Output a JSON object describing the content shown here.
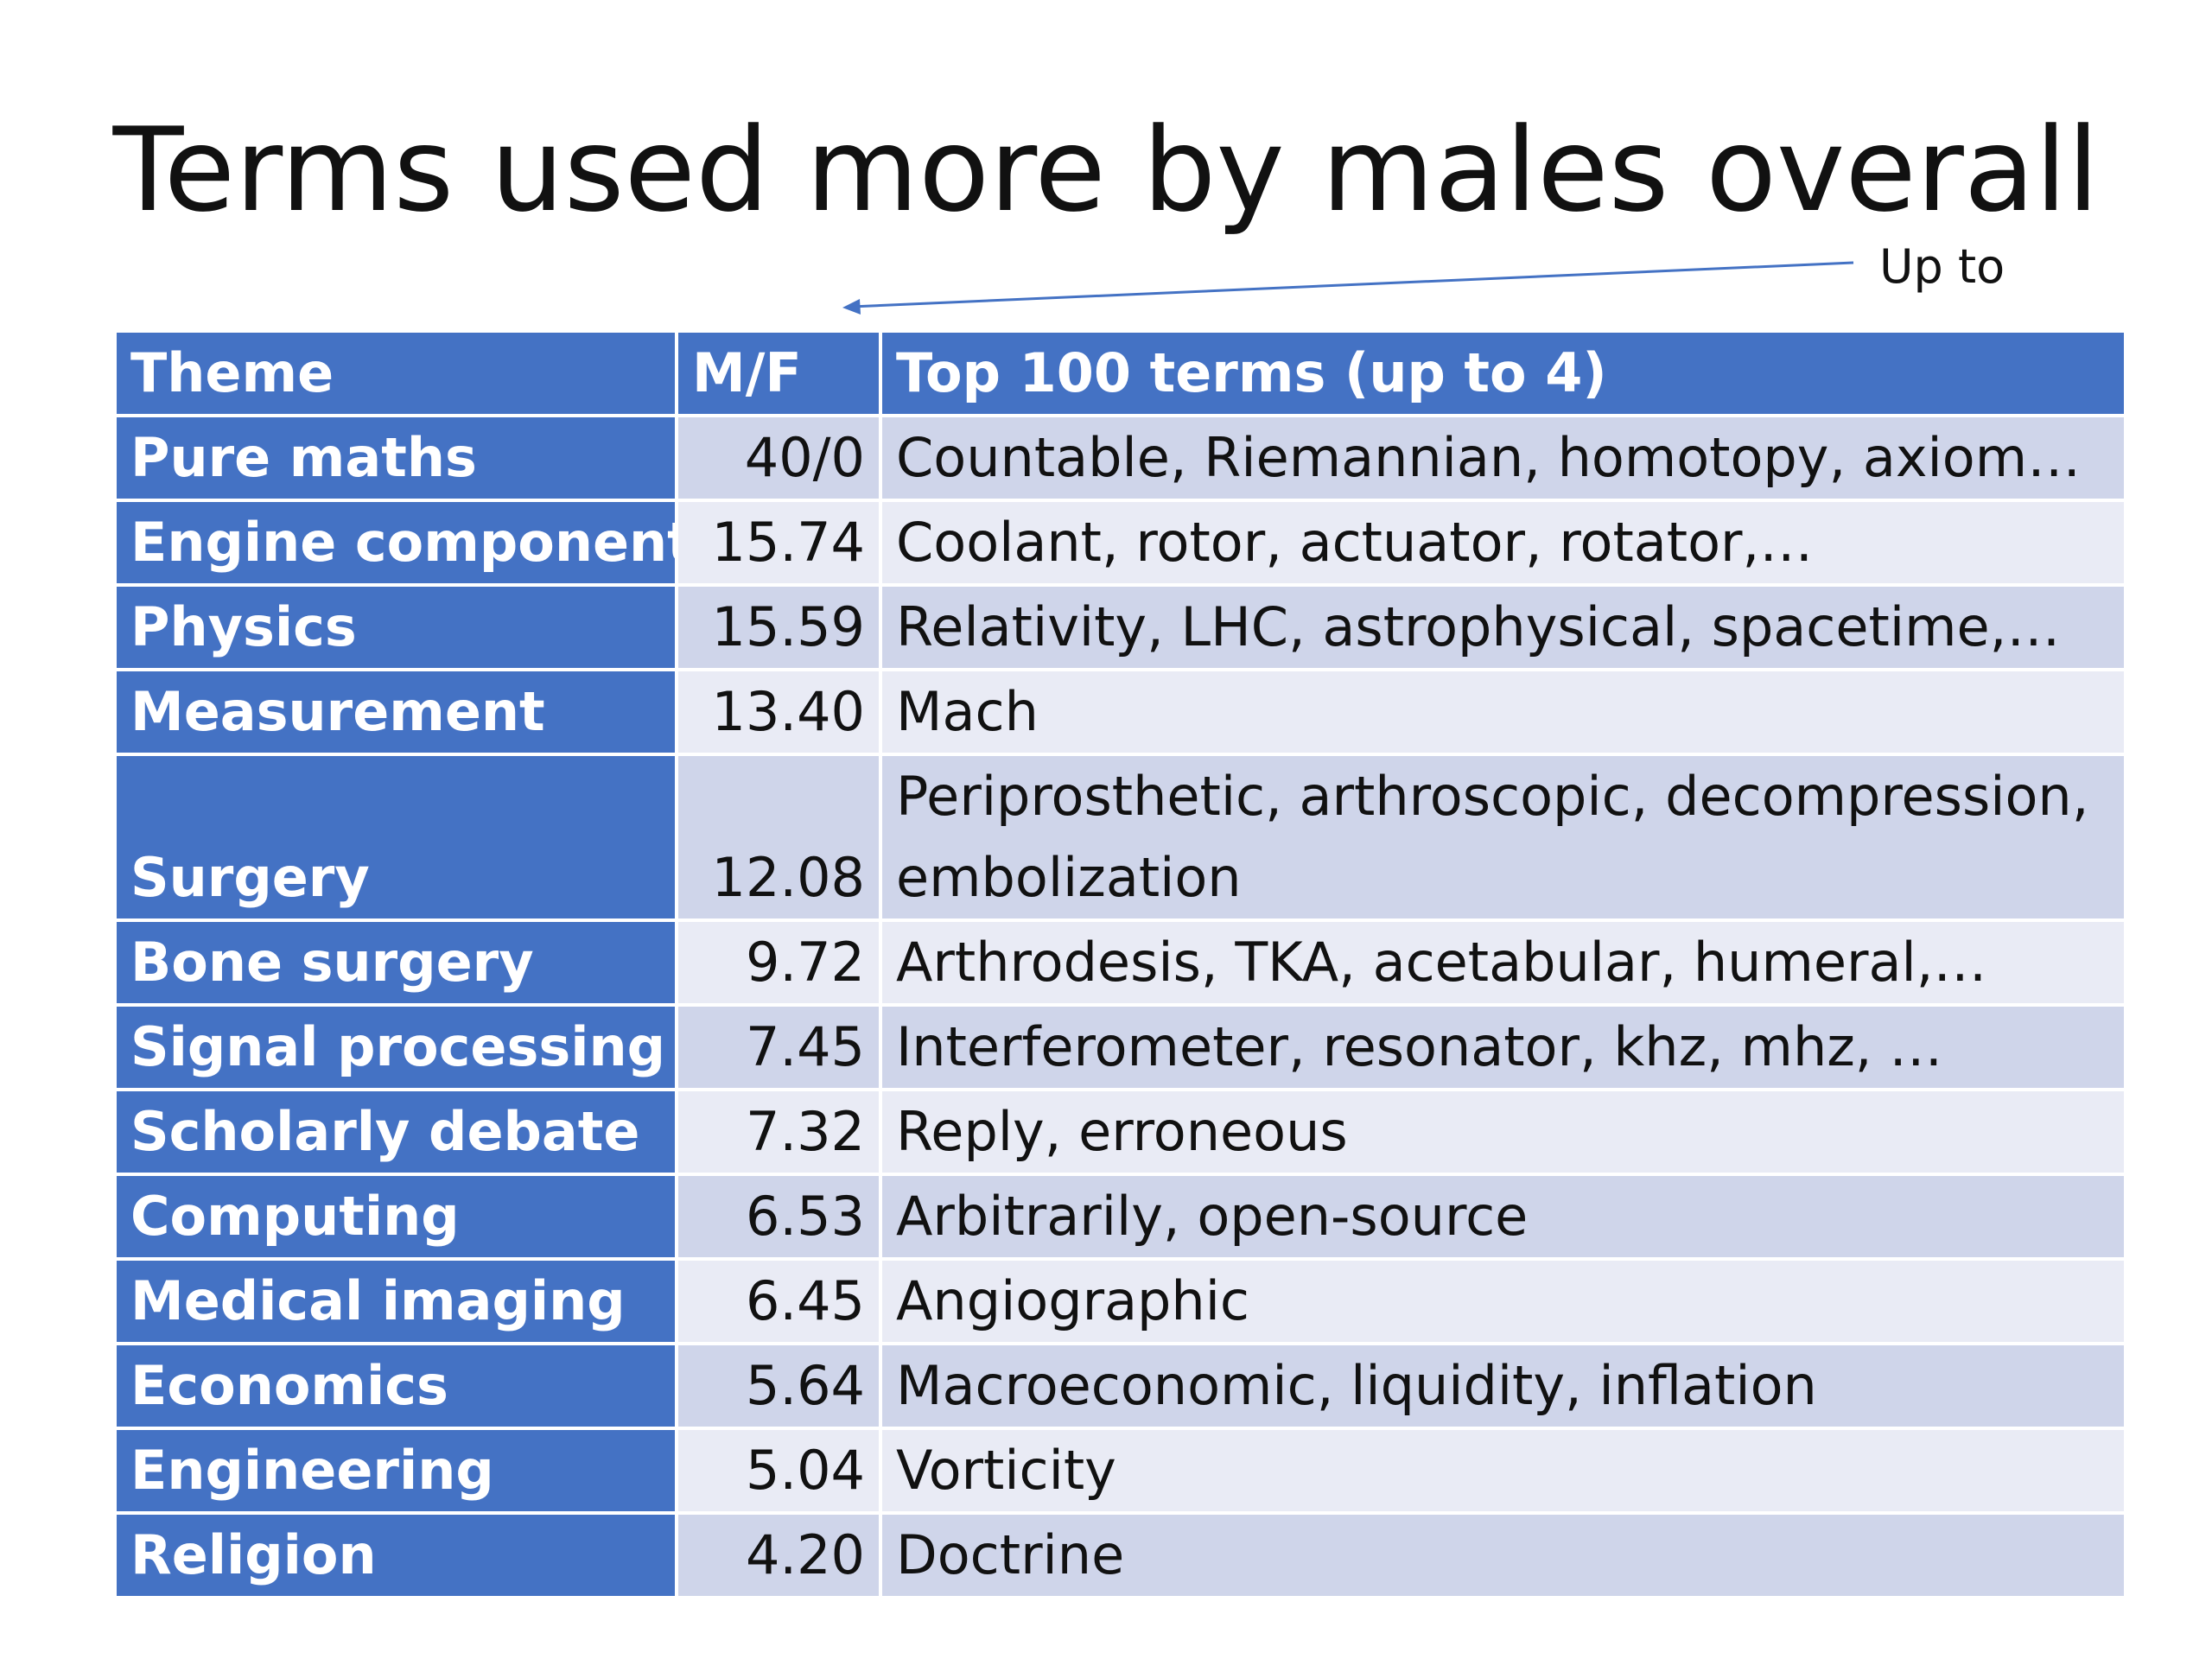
{
  "slide": {
    "title": "Terms used more by males overall",
    "annotation": "Up to"
  },
  "table": {
    "headers": {
      "theme": "Theme",
      "ratio": "M/F",
      "terms": "Top 100 terms (up to 4)"
    },
    "rows": [
      {
        "theme": "Pure maths",
        "ratio": "40/0",
        "terms": "Countable, Riemannian, homotopy, axiom…"
      },
      {
        "theme": "Engine component",
        "ratio": "15.74",
        "terms": "Coolant, rotor, actuator, rotator,…"
      },
      {
        "theme": "Physics",
        "ratio": "15.59",
        "terms": "Relativity, LHC, astrophysical, spacetime,…"
      },
      {
        "theme": "Measurement",
        "ratio": "13.40",
        "terms": "Mach"
      },
      {
        "theme": "Surgery",
        "ratio": "12.08",
        "terms": "Periprosthetic, arthroscopic, decompression, embolization"
      },
      {
        "theme": "Bone surgery",
        "ratio": "9.72",
        "terms": "Arthrodesis, TKA, acetabular, humeral,…"
      },
      {
        "theme": "Signal processing",
        "ratio": "7.45",
        "terms": "Interferometer, resonator, khz, mhz, …"
      },
      {
        "theme": "Scholarly debate",
        "ratio": "7.32",
        "terms": "Reply, erroneous"
      },
      {
        "theme": "Computing",
        "ratio": "6.53",
        "terms": "Arbitrarily, open-source"
      },
      {
        "theme": "Medical imaging",
        "ratio": "6.45",
        "terms": "Angiographic"
      },
      {
        "theme": "Economics",
        "ratio": "5.64",
        "terms": "Macroeconomic, liquidity, inflation"
      },
      {
        "theme": "Engineering",
        "ratio": "5.04",
        "terms": "Vorticity"
      },
      {
        "theme": "Religion",
        "ratio": "4.20",
        "terms": "Doctrine"
      }
    ]
  },
  "colors": {
    "header_bg": "#4472c4",
    "row_odd_bg": "#cfd5ea",
    "row_even_bg": "#e9ebf5",
    "arrow": "#4472c4"
  }
}
